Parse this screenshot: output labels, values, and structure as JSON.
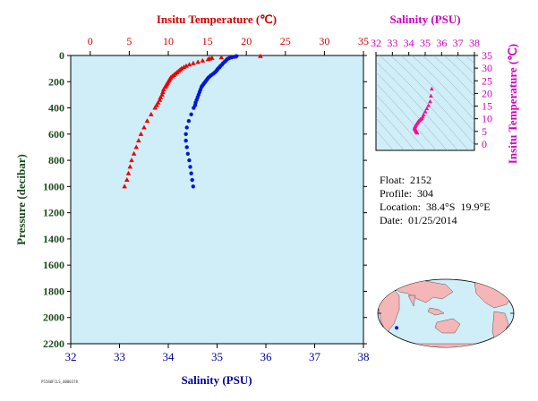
{
  "chart_data": [
    {
      "type": "scatter",
      "role": "profile",
      "ylabel": "Pressure (decibar)",
      "x_bottom_label": "Salinity (PSU)",
      "x_top_label": "Insitu Temperature (℃)",
      "pressure_ticks": [
        "0",
        "200",
        "400",
        "600",
        "800",
        "1000",
        "1200",
        "1400",
        "1600",
        "1800",
        "2000",
        "2200"
      ],
      "salinity_ticks": [
        "32",
        "33",
        "34",
        "35",
        "36",
        "37",
        "38"
      ],
      "temperature_ticks": [
        "0",
        "5",
        "10",
        "15",
        "20",
        "25",
        "30",
        "35"
      ],
      "ylim": [
        2200,
        0
      ],
      "salinity_xlim": [
        32,
        38
      ],
      "temperature_xlim": [
        -2.5,
        35
      ],
      "grid": false,
      "series": [
        {
          "name": "temperature",
          "color": "#ee0000",
          "marker": "triangle",
          "pressure": [
            5,
            10,
            15,
            20,
            25,
            30,
            40,
            50,
            60,
            70,
            80,
            90,
            100,
            110,
            120,
            130,
            140,
            150,
            160,
            170,
            180,
            190,
            200,
            210,
            220,
            230,
            240,
            260,
            280,
            300,
            320,
            340,
            360,
            380,
            400,
            450,
            500,
            550,
            600,
            650,
            700,
            750,
            800,
            850,
            900,
            950,
            1000
          ],
          "values": [
            21.8,
            18.5,
            16.8,
            15.6,
            15.3,
            15.1,
            14.4,
            13.8,
            13.2,
            12.7,
            12.3,
            12.0,
            11.7,
            11.5,
            11.3,
            11.1,
            10.9,
            10.7,
            10.5,
            10.3,
            10.2,
            10.1,
            10.0,
            9.9,
            9.8,
            9.7,
            9.6,
            9.4,
            9.3,
            9.2,
            9.0,
            8.9,
            8.7,
            8.5,
            8.3,
            7.8,
            7.3,
            6.9,
            6.5,
            6.2,
            5.9,
            5.6,
            5.3,
            5.1,
            4.9,
            4.7,
            4.4
          ]
        },
        {
          "name": "salinity",
          "color": "#0018d8",
          "marker": "circle",
          "pressure": [
            5,
            10,
            15,
            20,
            25,
            30,
            40,
            50,
            60,
            70,
            80,
            90,
            100,
            110,
            120,
            130,
            140,
            150,
            160,
            170,
            180,
            190,
            200,
            210,
            220,
            230,
            240,
            260,
            280,
            300,
            320,
            340,
            360,
            380,
            400,
            450,
            500,
            550,
            600,
            650,
            700,
            750,
            800,
            850,
            900,
            950,
            1000
          ],
          "values": [
            35.4,
            35.35,
            35.3,
            35.25,
            35.22,
            35.2,
            35.18,
            35.15,
            35.12,
            35.1,
            35.07,
            35.05,
            35.02,
            35.0,
            34.98,
            34.95,
            34.92,
            34.88,
            34.85,
            34.82,
            34.8,
            34.78,
            34.76,
            34.74,
            34.72,
            34.7,
            34.68,
            34.66,
            34.64,
            34.62,
            34.6,
            34.58,
            34.56,
            34.55,
            34.52,
            34.47,
            34.42,
            34.38,
            34.36,
            34.36,
            34.38,
            34.4,
            34.43,
            34.45,
            34.47,
            34.49,
            34.51
          ]
        }
      ]
    },
    {
      "type": "scatter",
      "role": "ts-diagram",
      "x_label": "Salinity (PSU)",
      "y_label": "Insitu Temperature (℃)",
      "x_ticks": [
        "32",
        "33",
        "34",
        "35",
        "36",
        "37",
        "38"
      ],
      "y_ticks": [
        "0",
        "5",
        "10",
        "15",
        "20",
        "25",
        "30",
        "35"
      ],
      "xlim": [
        32,
        38
      ],
      "ylim": [
        -2.5,
        35
      ],
      "color": "#ee1493",
      "points": [
        [
          35.4,
          21.8
        ],
        [
          35.35,
          19.0
        ],
        [
          35.3,
          16.8
        ],
        [
          35.2,
          15.2
        ],
        [
          35.1,
          14.0
        ],
        [
          35.0,
          12.8
        ],
        [
          34.9,
          11.6
        ],
        [
          34.85,
          10.8
        ],
        [
          34.8,
          10.1
        ],
        [
          34.72,
          9.8
        ],
        [
          34.66,
          9.4
        ],
        [
          34.6,
          9.0
        ],
        [
          34.55,
          8.6
        ],
        [
          34.52,
          8.3
        ],
        [
          34.47,
          7.8
        ],
        [
          34.42,
          7.3
        ],
        [
          34.38,
          6.9
        ],
        [
          34.36,
          6.5
        ],
        [
          34.36,
          6.2
        ],
        [
          34.38,
          5.9
        ],
        [
          34.4,
          5.6
        ],
        [
          34.43,
          5.3
        ],
        [
          34.45,
          5.1
        ],
        [
          34.47,
          4.9
        ],
        [
          34.49,
          4.7
        ],
        [
          34.51,
          4.4
        ]
      ]
    }
  ],
  "colors": {
    "plot_background": "#d0eef8",
    "temperature_axis": "#d00000",
    "salinity_axis": "#0000a0",
    "pressure_axis": "#1e4a1e",
    "ts_axis": "#d000c0"
  },
  "info": {
    "float": "Float:  2152",
    "profile": "Profile:  304",
    "location": "Location:  38.4°S  19.9°E",
    "date": "Date:  01/25/2014"
  },
  "map": {
    "icon": "world-map-icon",
    "marker_lon": 19.9,
    "marker_lat": -38.4
  },
  "footer_code": "P5580FCLS_0000378"
}
